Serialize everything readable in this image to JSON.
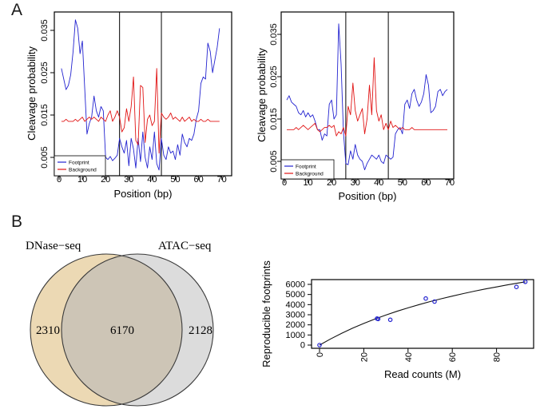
{
  "panels": {
    "a_label": "A",
    "b_label": "B"
  },
  "chart_data": [
    {
      "id": "cleavage_left",
      "type": "line",
      "title": "",
      "xlabel": "Position (bp)",
      "ylabel": "Cleavage probability",
      "xticks": [
        0,
        10,
        20,
        30,
        40,
        50,
        60,
        70
      ],
      "yticks": [
        0.005,
        0.015,
        0.025,
        0.035
      ],
      "ytick_labels": [
        "0.005",
        "0.015",
        "0.025",
        "0.035"
      ],
      "xlim": [
        -2,
        74
      ],
      "ylim": [
        0.0007,
        0.039
      ],
      "grid": false,
      "vlines": [
        26,
        44
      ],
      "legend_position": "bottom-left",
      "series": [
        {
          "name": "Footprint",
          "color": "#2323d0",
          "x_start": 1,
          "values": [
            0.026,
            0.0235,
            0.021,
            0.022,
            0.0245,
            0.03,
            0.0375,
            0.0355,
            0.0295,
            0.0325,
            0.0215,
            0.0105,
            0.013,
            0.0145,
            0.0195,
            0.016,
            0.0145,
            0.017,
            0.016,
            0.005,
            0.0045,
            0.0052,
            0.0042,
            0.0048,
            0.0055,
            0.0095,
            0.0075,
            0.006,
            0.009,
            0.003,
            0.0095,
            0.007,
            0.0025,
            0.0095,
            0.004,
            0.011,
            0.005,
            0.0025,
            0.0075,
            0.0045,
            0.011,
            0.0035,
            0.002,
            0.0095,
            0.0055,
            0.0045,
            0.0075,
            0.006,
            0.0065,
            0.0045,
            0.008,
            0.0055,
            0.0105,
            0.0085,
            0.0075,
            0.0095,
            0.009,
            0.0105,
            0.014,
            0.016,
            0.0225,
            0.024,
            0.0235,
            0.032,
            0.03,
            0.025,
            0.028,
            0.031,
            0.0355
          ]
        },
        {
          "name": "Background",
          "color": "#e11414",
          "x_start": 1,
          "values": [
            0.0135,
            0.0135,
            0.014,
            0.0135,
            0.0135,
            0.0135,
            0.014,
            0.0135,
            0.014,
            0.0145,
            0.0135,
            0.014,
            0.0145,
            0.014,
            0.0145,
            0.014,
            0.0135,
            0.0145,
            0.014,
            0.0135,
            0.015,
            0.016,
            0.0135,
            0.0145,
            0.016,
            0.0145,
            0.011,
            0.012,
            0.0165,
            0.0135,
            0.017,
            0.024,
            0.009,
            0.008,
            0.022,
            0.0215,
            0.0085,
            0.014,
            0.015,
            0.0125,
            0.0135,
            0.026,
            0.006,
            0.0155,
            0.0145,
            0.014,
            0.0145,
            0.0155,
            0.014,
            0.0145,
            0.014,
            0.0135,
            0.0145,
            0.0135,
            0.014,
            0.0145,
            0.0135,
            0.014,
            0.0135,
            0.0135,
            0.014,
            0.0135,
            0.0135,
            0.014,
            0.0135,
            0.0135,
            0.0135,
            0.0135,
            0.0135
          ]
        }
      ]
    },
    {
      "id": "cleavage_right",
      "type": "line",
      "title": "",
      "xlabel": "Position (bp)",
      "ylabel": "Cleavage probability",
      "xticks": [
        0,
        10,
        20,
        30,
        40,
        50,
        60,
        70
      ],
      "yticks": [
        0.005,
        0.015,
        0.025,
        0.035
      ],
      "ytick_labels": [
        "0.005",
        "0.015",
        "0.025",
        "0.035"
      ],
      "xlim": [
        -2,
        72
      ],
      "ylim": [
        0.0008,
        0.04
      ],
      "grid": false,
      "vlines": [
        26,
        44
      ],
      "legend_position": "bottom-left",
      "series": [
        {
          "name": "Footprint",
          "color": "#2323d0",
          "x_start": 1,
          "values": [
            0.0195,
            0.0205,
            0.019,
            0.0185,
            0.018,
            0.0165,
            0.016,
            0.017,
            0.0155,
            0.0165,
            0.0155,
            0.016,
            0.0145,
            0.0125,
            0.0125,
            0.01,
            0.0115,
            0.011,
            0.0185,
            0.0195,
            0.015,
            0.016,
            0.0375,
            0.028,
            0.012,
            0.0045,
            0.0042,
            0.0075,
            0.0055,
            0.009,
            0.0065,
            0.0055,
            0.005,
            0.003,
            0.0045,
            0.0055,
            0.0065,
            0.006,
            0.0055,
            0.0065,
            0.005,
            0.0045,
            0.0065,
            0.006,
            0.0055,
            0.006,
            0.0115,
            0.0125,
            0.013,
            0.0115,
            0.0185,
            0.0195,
            0.0175,
            0.021,
            0.022,
            0.0195,
            0.018,
            0.019,
            0.021,
            0.0255,
            0.023,
            0.0165,
            0.017,
            0.018,
            0.0215,
            0.022,
            0.0205,
            0.0215,
            0.022
          ]
        },
        {
          "name": "Background",
          "color": "#e11414",
          "x_start": 1,
          "values": [
            0.0125,
            0.0125,
            0.0125,
            0.0125,
            0.013,
            0.0125,
            0.013,
            0.0135,
            0.013,
            0.0125,
            0.013,
            0.0135,
            0.014,
            0.0125,
            0.012,
            0.0125,
            0.013,
            0.013,
            0.0135,
            0.013,
            0.0135,
            0.011,
            0.012,
            0.0115,
            0.013,
            0.011,
            0.018,
            0.016,
            0.0235,
            0.017,
            0.0145,
            0.016,
            0.0175,
            0.0115,
            0.015,
            0.023,
            0.016,
            0.0295,
            0.017,
            0.0145,
            0.016,
            0.0125,
            0.014,
            0.0125,
            0.0145,
            0.013,
            0.0135,
            0.013,
            0.0125,
            0.013,
            0.0125,
            0.0125,
            0.0125,
            0.013,
            0.0125,
            0.0125,
            0.0125,
            0.0125,
            0.0125,
            0.0125,
            0.0125,
            0.0125,
            0.0125,
            0.0125,
            0.0125,
            0.0125,
            0.0125,
            0.0125,
            0.0125
          ]
        }
      ]
    },
    {
      "id": "venn",
      "type": "venn",
      "sets": [
        {
          "label": "DNase−seq",
          "value": 2310,
          "color": "#ecd9b4"
        },
        {
          "label": "ATAC−seq",
          "value": 2128,
          "color": "#dcdcdc"
        }
      ],
      "overlap": {
        "value": 6170,
        "color": "#cdc5b6"
      },
      "outline_color": "#3a3a3a"
    },
    {
      "id": "saturation",
      "type": "scatter",
      "title": "",
      "xlabel": "Read counts (M)",
      "ylabel": "Reproducible footprints",
      "xticks": [
        0,
        20,
        40,
        60,
        80
      ],
      "yticks": [
        0,
        1000,
        2000,
        3000,
        4000,
        5000,
        6000
      ],
      "xlim": [
        -4,
        97
      ],
      "ylim": [
        -300,
        6500
      ],
      "grid": false,
      "point_color": "#2323d0",
      "curve_color": "#111111",
      "points": [
        [
          0,
          0
        ],
        [
          26,
          2620
        ],
        [
          26.5,
          2580
        ],
        [
          32,
          2500
        ],
        [
          48,
          4600
        ],
        [
          52,
          4300
        ],
        [
          89,
          5750
        ],
        [
          93,
          6250
        ]
      ],
      "curve": [
        [
          0,
          0
        ],
        [
          5,
          610
        ],
        [
          10,
          1160
        ],
        [
          15,
          1670
        ],
        [
          20,
          2140
        ],
        [
          25,
          2570
        ],
        [
          30,
          2970
        ],
        [
          35,
          3340
        ],
        [
          40,
          3680
        ],
        [
          45,
          4000
        ],
        [
          50,
          4300
        ],
        [
          55,
          4580
        ],
        [
          60,
          4840
        ],
        [
          65,
          5090
        ],
        [
          70,
          5330
        ],
        [
          75,
          5550
        ],
        [
          80,
          5750
        ],
        [
          85,
          5950
        ],
        [
          90,
          6140
        ],
        [
          93,
          6250
        ]
      ]
    }
  ]
}
